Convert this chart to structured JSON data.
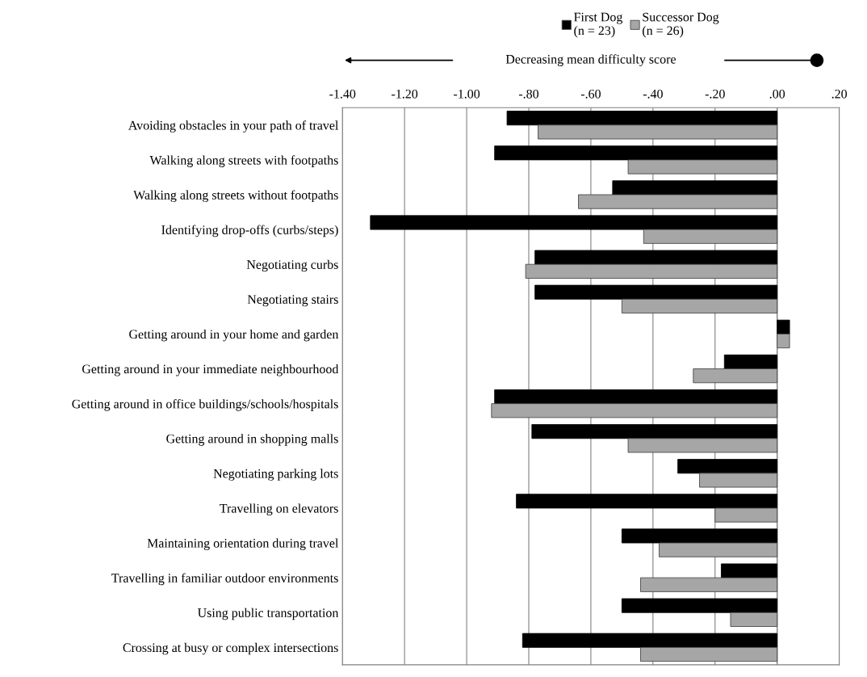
{
  "chart_data": {
    "type": "bar",
    "orientation": "horizontal",
    "categories": [
      "Avoiding obstacles in your path of travel",
      "Walking along streets with footpaths",
      "Walking along streets without footpaths",
      "Identifying drop-offs (curbs/steps)",
      "Negotiating curbs",
      "Negotiating stairs",
      "Getting around in your home and garden",
      "Getting around in your immediate neighbourhood",
      "Getting around in office buildings/schools/hospitals",
      "Getting around in shopping malls",
      "Negotiating parking lots",
      "Travelling on elevators",
      "Maintaining orientation during travel",
      "Travelling in familiar outdoor environments",
      "Using public transportation",
      "Crossing at busy or complex intersections"
    ],
    "series": [
      {
        "name": "First Dog\n(n = 23)",
        "color": "#000000",
        "values": [
          -0.87,
          -0.91,
          -0.53,
          -1.31,
          -0.78,
          -0.78,
          0.04,
          -0.17,
          -0.91,
          -0.79,
          -0.32,
          -0.84,
          -0.5,
          -0.18,
          -0.5,
          -0.82
        ]
      },
      {
        "name": "Successor Dog\n(n = 26)",
        "color": "#a6a6a6",
        "values": [
          -0.77,
          -0.48,
          -0.64,
          -0.43,
          -0.81,
          -0.5,
          0.04,
          -0.27,
          -0.92,
          -0.48,
          -0.25,
          -0.2,
          -0.38,
          -0.44,
          -0.15,
          -0.44
        ]
      }
    ],
    "xlim": [
      -1.4,
      0.2
    ],
    "xticks": [
      {
        "value": -1.4,
        "label": "-1.40"
      },
      {
        "value": -1.2,
        "label": "-1.20"
      },
      {
        "value": -1.0,
        "label": "-1.00"
      },
      {
        "value": -0.8,
        "label": "-.80"
      },
      {
        "value": -0.6,
        "label": "-.60"
      },
      {
        "value": -0.4,
        "label": "-.40"
      },
      {
        "value": -0.2,
        "label": "-.20"
      },
      {
        "value": 0,
        "label": ".00"
      },
      {
        "value": 0.2,
        "label": ".20"
      }
    ],
    "grid": "x",
    "legend": "top",
    "annotations": [
      "Decreasing mean difficulty score"
    ]
  }
}
